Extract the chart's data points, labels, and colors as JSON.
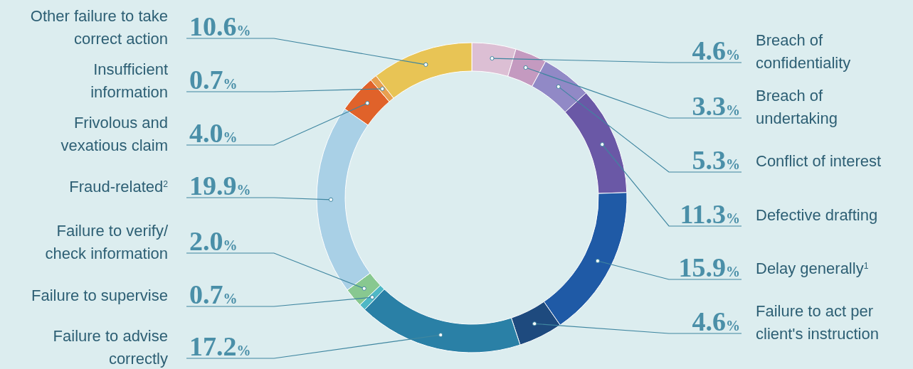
{
  "chart_data": {
    "type": "donut",
    "categories": [
      "Breach of confidentiality",
      "Breach of undertaking",
      "Conflict of interest",
      "Defective drafting",
      "Delay generally$^{1}$",
      "Failure to act per client's instruction",
      "Failure to advise correctly",
      "Failure to supervise",
      "Failure to verify/check information",
      "Fraud-related$^{2}$",
      "Frivolous and vexatious claim",
      "Insufficient information",
      "Other failure to take correct action"
    ],
    "values": [
      4.6,
      3.3,
      5.3,
      11.3,
      15.9,
      4.6,
      17.2,
      0.7,
      2.0,
      19.9,
      4.0,
      0.7,
      10.6
    ],
    "value_labels": [
      "4.6%",
      "3.3%",
      "5.3%",
      "11.3%",
      "15.9%",
      "4.6%",
      "17.2%",
      "0.7%",
      "2.0%",
      "19.9%",
      "4.0%",
      "0.7%",
      "10.6%"
    ],
    "colors": [
      "#dcbfd4",
      "#c49ac0",
      "#9189c6",
      "#6a58a6",
      "#1f5aa6",
      "#1e4a7e",
      "#2a80a6",
      "#4fb8c6",
      "#88c890",
      "#a9d0e6",
      "#e0622a",
      "#e8a050",
      "#e8c455"
    ]
  }
}
